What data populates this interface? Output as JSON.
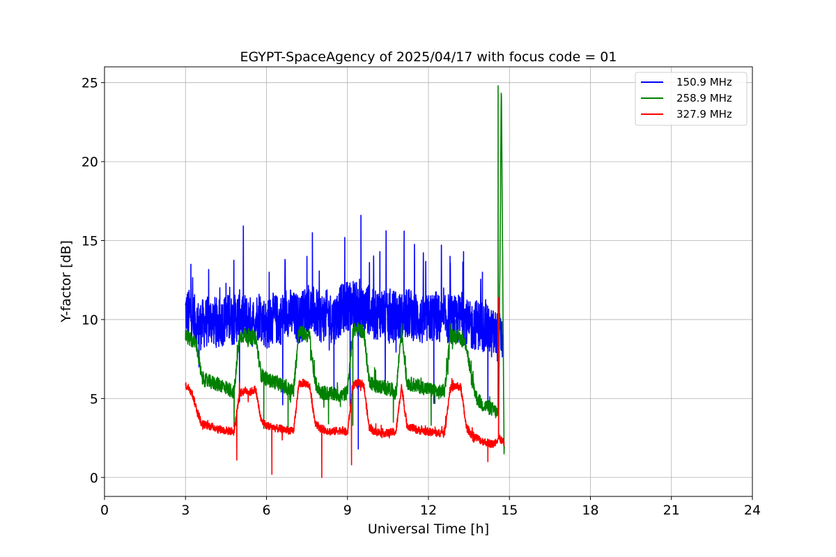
{
  "chart_data": {
    "type": "line",
    "title": "EGYPT-SpaceAgency of 2025/04/17 with focus code = 01",
    "xlabel": "Universal Time [h]",
    "ylabel": "Y-factor [dB]",
    "xlim": [
      0,
      24
    ],
    "ylim": [
      -1.2,
      26
    ],
    "xticks": [
      0,
      3,
      6,
      9,
      12,
      15,
      18,
      21,
      24
    ],
    "yticks": [
      0,
      5,
      10,
      15,
      20,
      25
    ],
    "grid": true,
    "legend_position": "top-right",
    "series": [
      {
        "name": "150.9 MHz",
        "color": "#0000ff",
        "x": [
          3.0,
          3.25,
          3.5,
          3.75,
          4.0,
          4.25,
          4.5,
          4.75,
          5.0,
          5.25,
          5.5,
          5.75,
          6.0,
          6.25,
          6.5,
          6.75,
          7.0,
          7.25,
          7.5,
          7.75,
          8.0,
          8.25,
          8.5,
          8.75,
          9.0,
          9.25,
          9.5,
          9.75,
          10.0,
          10.25,
          10.5,
          10.75,
          11.0,
          11.25,
          11.5,
          11.75,
          12.0,
          12.25,
          12.5,
          12.75,
          13.0,
          13.25,
          13.5,
          13.75,
          14.0,
          14.25,
          14.5,
          14.75
        ],
        "values": [
          10.5,
          10.2,
          9.6,
          9.8,
          10.0,
          9.7,
          10.1,
          9.9,
          10.3,
          10.0,
          9.8,
          10.4,
          9.6,
          10.1,
          9.9,
          10.6,
          10.2,
          10.0,
          10.8,
          10.5,
          10.1,
          10.3,
          10.0,
          10.6,
          10.9,
          11.0,
          10.4,
          10.7,
          10.2,
          10.5,
          10.0,
          10.3,
          10.1,
          10.4,
          10.2,
          9.9,
          10.0,
          10.3,
          9.8,
          10.1,
          9.9,
          10.2,
          9.5,
          9.7,
          9.6,
          9.2,
          9.0,
          8.8
        ],
        "peaks": [
          [
            3.2,
            13.5
          ],
          [
            4.5,
            12.3
          ],
          [
            6.1,
            13.0
          ],
          [
            7.5,
            14.0
          ],
          [
            7.7,
            15.5
          ],
          [
            8.9,
            15.2
          ],
          [
            9.5,
            16.6
          ],
          [
            10.2,
            14.3
          ],
          [
            11.1,
            15.6
          ],
          [
            12.8,
            14.0
          ],
          [
            13.3,
            14.3
          ],
          [
            14.0,
            13.0
          ]
        ],
        "dips": [
          [
            3.5,
            7.0
          ],
          [
            5.0,
            4.8
          ],
          [
            6.6,
            4.6
          ],
          [
            8.5,
            5.3
          ],
          [
            9.1,
            4.5
          ],
          [
            9.4,
            1.8
          ],
          [
            10.4,
            5.5
          ],
          [
            12.2,
            4.7
          ],
          [
            14.2,
            4.3
          ]
        ]
      },
      {
        "name": "258.9 MHz",
        "color": "#008000",
        "x": [
          3.0,
          3.2,
          3.4,
          3.6,
          3.8,
          4.0,
          4.4,
          4.6,
          4.8,
          5.0,
          5.2,
          5.4,
          5.6,
          5.8,
          6.0,
          6.4,
          6.8,
          7.0,
          7.2,
          7.4,
          7.6,
          7.8,
          8.0,
          8.4,
          8.8,
          9.0,
          9.2,
          9.4,
          9.6,
          9.8,
          10.0,
          10.4,
          10.6,
          10.8,
          11.0,
          11.2,
          11.6,
          12.0,
          12.4,
          12.6,
          12.8,
          13.0,
          13.2,
          13.4,
          13.6,
          13.8,
          14.0,
          14.4,
          14.6,
          14.7,
          14.8
        ],
        "values": [
          9.0,
          8.7,
          8.5,
          6.3,
          6.1,
          6.0,
          5.8,
          5.6,
          5.4,
          8.9,
          9.0,
          8.8,
          8.9,
          6.5,
          6.2,
          6.0,
          5.6,
          5.5,
          9.2,
          9.1,
          8.9,
          6.0,
          5.4,
          5.3,
          5.2,
          5.4,
          9.3,
          9.4,
          9.2,
          6.2,
          5.8,
          5.7,
          5.6,
          5.3,
          9.5,
          6.0,
          5.8,
          5.6,
          5.4,
          5.5,
          8.9,
          9.0,
          8.8,
          8.4,
          6.2,
          5.0,
          4.6,
          4.3,
          4.0,
          24.8,
          2.0
        ],
        "peaks": [
          [
            14.58,
            24.8
          ]
        ],
        "dips": [
          [
            4.8,
            3.2
          ],
          [
            5.9,
            3.1
          ],
          [
            6.8,
            3.0
          ],
          [
            8.3,
            3.4
          ],
          [
            9.2,
            3.3
          ],
          [
            10.7,
            3.5
          ],
          [
            12.1,
            3.3
          ],
          [
            14.8,
            1.5
          ]
        ]
      },
      {
        "name": "327.9 MHz",
        "color": "#ff0000",
        "x": [
          3.0,
          3.2,
          3.4,
          3.6,
          3.8,
          4.0,
          4.4,
          4.8,
          5.0,
          5.2,
          5.4,
          5.6,
          5.8,
          6.0,
          6.4,
          6.8,
          7.0,
          7.2,
          7.4,
          7.6,
          7.8,
          8.0,
          8.4,
          8.8,
          9.0,
          9.2,
          9.4,
          9.6,
          9.8,
          10.0,
          10.4,
          10.8,
          11.0,
          11.2,
          11.6,
          12.0,
          12.4,
          12.6,
          12.8,
          13.0,
          13.2,
          13.4,
          13.6,
          13.8,
          14.0,
          14.4,
          14.6,
          14.8
        ],
        "values": [
          5.8,
          5.6,
          4.4,
          3.4,
          3.3,
          3.2,
          3.0,
          2.9,
          5.3,
          5.5,
          5.4,
          5.6,
          3.6,
          3.3,
          3.1,
          3.0,
          2.9,
          5.9,
          6.0,
          5.8,
          3.5,
          3.1,
          2.9,
          3.0,
          2.8,
          5.8,
          6.0,
          5.9,
          3.2,
          2.9,
          2.8,
          2.9,
          5.8,
          3.3,
          3.0,
          2.9,
          2.8,
          2.9,
          5.6,
          5.8,
          5.7,
          3.2,
          2.7,
          2.5,
          2.3,
          2.1,
          2.5,
          2.2
        ],
        "peaks": [
          [
            14.6,
            11.4
          ]
        ],
        "dips": [
          [
            4.9,
            1.1
          ],
          [
            6.2,
            0.2
          ],
          [
            8.05,
            0.0
          ],
          [
            9.15,
            0.8
          ],
          [
            14.2,
            1.0
          ]
        ]
      }
    ]
  }
}
